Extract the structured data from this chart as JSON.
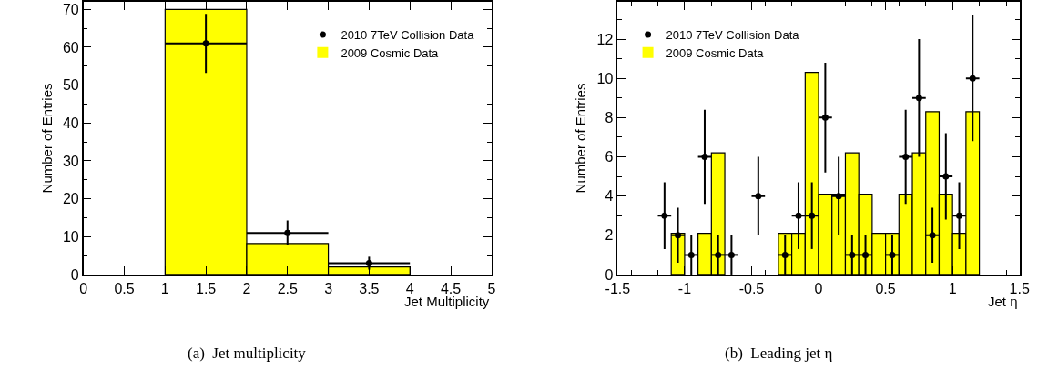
{
  "chart_data": [
    {
      "type": "histogram",
      "xlabel": "Jet Multiplicity",
      "ylabel": "Number of Entries",
      "annotations": [
        "(a)  Jet multiplicity"
      ],
      "xlim": [
        0,
        5
      ],
      "ylim": [
        0,
        72
      ],
      "xticks": [
        0,
        0.5,
        1,
        1.5,
        2,
        2.5,
        3,
        3.5,
        4,
        4.5,
        5
      ],
      "yticks": [
        0,
        10,
        20,
        30,
        40,
        50,
        60,
        70
      ],
      "legend": "top right",
      "series": [
        {
          "name": "2010 7TeV Collision Data",
          "type": "scatter",
          "marker": "circle",
          "color": "#000000",
          "x": [
            1.5,
            2.5,
            3.5
          ],
          "values": [
            61,
            11,
            3
          ],
          "errors": [
            7.8,
            3.3,
            1.7
          ],
          "xerrors": [
            0.5,
            0.5,
            0.5
          ]
        },
        {
          "name": "2009 Cosmic Data",
          "color": "#ffff00",
          "bins": [
            0,
            1,
            2,
            3,
            4,
            5
          ],
          "values": [
            0,
            70,
            8.2,
            2.0,
            0
          ]
        }
      ]
    },
    {
      "type": "histogram",
      "xlabel": "Jet η",
      "ylabel": "Number of Entries",
      "annotations": [
        "(b)  Leading jet η"
      ],
      "xlim": [
        -1.5,
        1.5
      ],
      "ylim": [
        0,
        13.9
      ],
      "xticks": [
        -1.5,
        -1,
        -0.5,
        0,
        0.5,
        1,
        1.5
      ],
      "yticks": [
        0,
        2,
        4,
        6,
        8,
        10,
        12
      ],
      "legend": "top left",
      "series": [
        {
          "name": "2010 7TeV Collision Data",
          "type": "scatter",
          "marker": "circle",
          "color": "#000000",
          "x": [
            -1.15,
            -1.05,
            -0.95,
            -0.85,
            -0.75,
            -0.65,
            -0.45,
            -0.25,
            -0.15,
            -0.05,
            0.05,
            0.15,
            0.25,
            0.35,
            0.55,
            0.65,
            0.75,
            0.85,
            0.95,
            1.05,
            1.15
          ],
          "values": [
            3,
            2,
            1,
            6,
            1,
            1,
            4,
            1,
            3,
            3,
            8,
            4,
            1,
            1,
            1,
            6,
            9,
            2,
            5,
            3,
            10
          ],
          "errors": [
            1.7,
            1.4,
            1,
            2.4,
            1,
            1,
            2,
            1,
            1.7,
            1.7,
            2.8,
            2,
            1,
            1,
            1,
            2.4,
            3,
            1.4,
            2.2,
            1.7,
            3.2
          ],
          "xerrors": [
            0.05,
            0.05,
            0.05,
            0.05,
            0.05,
            0.05,
            0.05,
            0.05,
            0.05,
            0.05,
            0.05,
            0.05,
            0.05,
            0.05,
            0.05,
            0.05,
            0.05,
            0.05,
            0.05,
            0.05,
            0.05
          ]
        },
        {
          "name": "2009 Cosmic Data",
          "color": "#ffff00",
          "bins": [
            -1.5,
            -1.4,
            -1.3,
            -1.2,
            -1.1,
            -1.0,
            -0.9,
            -0.8,
            -0.7,
            -0.6,
            -0.5,
            -0.4,
            -0.3,
            -0.2,
            -0.1,
            0,
            0.1,
            0.2,
            0.3,
            0.4,
            0.5,
            0.6,
            0.7,
            0.8,
            0.9,
            1.0,
            1.1,
            1.2,
            1.3,
            1.4,
            1.5
          ],
          "values": [
            0,
            0,
            0,
            0,
            2.1,
            0,
            2.1,
            6.2,
            0,
            0,
            0,
            0,
            2.1,
            2.1,
            10.3,
            4.1,
            4.1,
            6.2,
            4.1,
            2.1,
            2.1,
            4.1,
            6.2,
            8.3,
            4.1,
            2.1,
            8.3,
            0,
            0,
            0
          ]
        }
      ]
    }
  ]
}
